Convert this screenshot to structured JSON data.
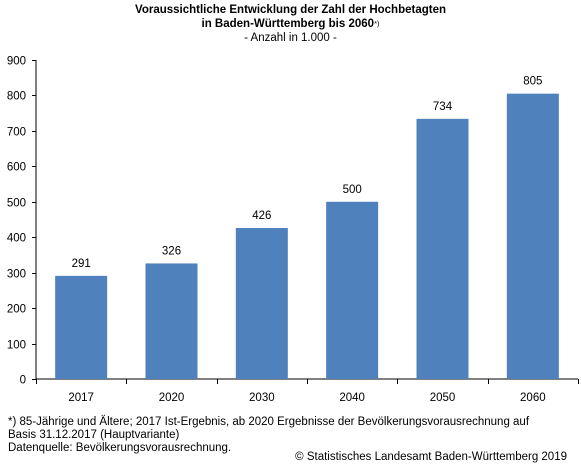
{
  "chart_data": {
    "type": "bar",
    "title_line1": "Voraussichtliche Entwicklung der Zahl der Hochbetagten",
    "title_line2": "in Baden-Württemberg bis 2060",
    "title_mark": "*)",
    "subtitle": "- Anzahl in 1.000 -",
    "categories": [
      "2017",
      "2020",
      "2030",
      "2040",
      "2050",
      "2060"
    ],
    "values": [
      291,
      326,
      426,
      500,
      734,
      805
    ],
    "data_labels": [
      "291",
      "326",
      "426",
      "500",
      "734",
      "805"
    ],
    "ylim": [
      0,
      900
    ],
    "yticks": [
      0,
      100,
      200,
      300,
      400,
      500,
      600,
      700,
      800,
      900
    ],
    "bar_color": "#4f81bd",
    "grid": false,
    "legend": "none"
  },
  "footnotes": {
    "line1": "*) 85-Jährige und Ältere; 2017 Ist-Ergebnis, ab 2020 Ergebnisse der Bevölkerungsvorausrechnung auf",
    "line2": "Basis 31.12.2017 (Hauptvariante)",
    "line3": "Datenquelle: Bevölkerungsvorausrechnung.",
    "copyright": "© Statistisches Landesamt Baden-Württemberg 2019"
  }
}
